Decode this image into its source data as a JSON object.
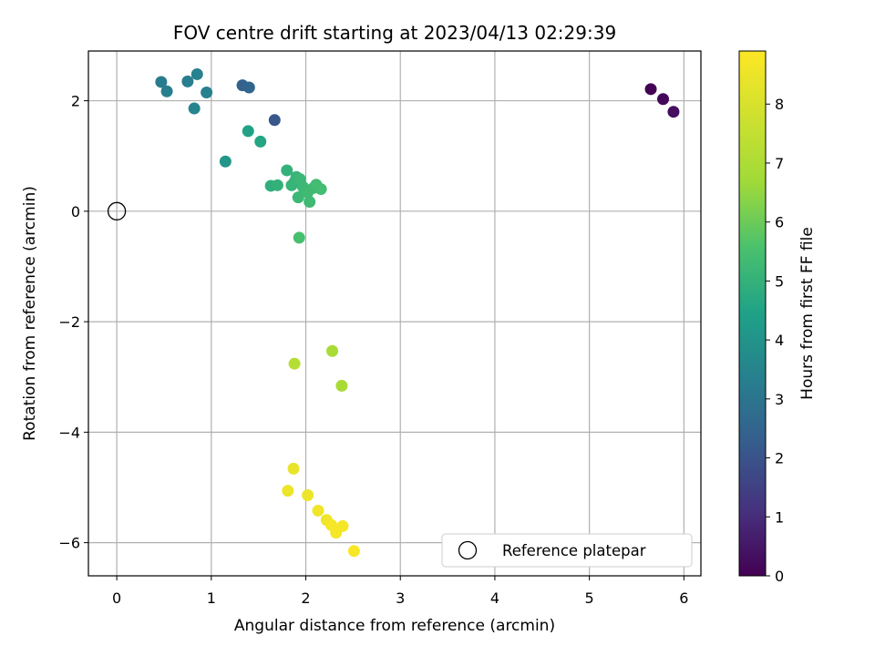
{
  "chart_data": {
    "type": "scatter",
    "title": "FOV centre drift starting at 2023/04/13 02:29:39",
    "xlabel": "Angular distance from reference (arcmin)",
    "ylabel": "Rotation from reference (arcmin)",
    "xlim": [
      -0.3,
      6.18
    ],
    "ylim": [
      -6.6,
      2.9
    ],
    "xticks": [
      0,
      1,
      2,
      3,
      4,
      5,
      6
    ],
    "yticks": [
      -6,
      -4,
      -2,
      0,
      2
    ],
    "ytick_labels": [
      "−6",
      "−4",
      "−2",
      "0",
      "2"
    ],
    "grid": true,
    "colormap": "viridis",
    "colorbar": {
      "label": "Hours from first FF file",
      "range": [
        0,
        8.9
      ],
      "ticks": [
        0,
        1,
        2,
        3,
        4,
        5,
        6,
        7,
        8
      ]
    },
    "legend": {
      "position": "lower-right",
      "entries": [
        {
          "label": "Reference platepar",
          "marker": "open-circle"
        }
      ]
    },
    "reference_point": {
      "x": 0,
      "y": 0
    },
    "points": [
      {
        "x": 5.65,
        "y": 2.21,
        "c": 0.0
      },
      {
        "x": 5.78,
        "y": 2.03,
        "c": 0.15
      },
      {
        "x": 5.89,
        "y": 1.8,
        "c": 0.3
      },
      {
        "x": 1.67,
        "y": 1.65,
        "c": 2.1
      },
      {
        "x": 1.33,
        "y": 2.28,
        "c": 2.4
      },
      {
        "x": 1.4,
        "y": 2.24,
        "c": 2.5
      },
      {
        "x": 0.47,
        "y": 2.34,
        "c": 3.2
      },
      {
        "x": 0.53,
        "y": 2.17,
        "c": 3.3
      },
      {
        "x": 0.75,
        "y": 2.35,
        "c": 3.3
      },
      {
        "x": 0.85,
        "y": 2.48,
        "c": 3.4
      },
      {
        "x": 0.95,
        "y": 2.15,
        "c": 3.4
      },
      {
        "x": 0.82,
        "y": 1.86,
        "c": 3.5
      },
      {
        "x": 1.15,
        "y": 0.9,
        "c": 4.1
      },
      {
        "x": 1.39,
        "y": 1.45,
        "c": 4.5
      },
      {
        "x": 1.52,
        "y": 1.26,
        "c": 4.6
      },
      {
        "x": 1.63,
        "y": 0.46,
        "c": 4.9
      },
      {
        "x": 1.7,
        "y": 0.47,
        "c": 5.0
      },
      {
        "x": 1.8,
        "y": 0.74,
        "c": 5.0
      },
      {
        "x": 1.85,
        "y": 0.47,
        "c": 5.1
      },
      {
        "x": 1.88,
        "y": 0.53,
        "c": 5.1
      },
      {
        "x": 1.9,
        "y": 0.62,
        "c": 5.1
      },
      {
        "x": 1.94,
        "y": 0.58,
        "c": 5.2
      },
      {
        "x": 1.97,
        "y": 0.44,
        "c": 5.2
      },
      {
        "x": 1.92,
        "y": 0.25,
        "c": 5.2
      },
      {
        "x": 2.02,
        "y": 0.34,
        "c": 5.3
      },
      {
        "x": 2.04,
        "y": 0.17,
        "c": 5.3
      },
      {
        "x": 2.08,
        "y": 0.42,
        "c": 5.3
      },
      {
        "x": 2.11,
        "y": 0.48,
        "c": 5.4
      },
      {
        "x": 2.16,
        "y": 0.4,
        "c": 5.4
      },
      {
        "x": 1.93,
        "y": -0.48,
        "c": 5.5
      },
      {
        "x": 2.28,
        "y": -2.53,
        "c": 6.9
      },
      {
        "x": 1.88,
        "y": -2.76,
        "c": 7.2
      },
      {
        "x": 2.38,
        "y": -3.16,
        "c": 6.9
      },
      {
        "x": 1.87,
        "y": -4.66,
        "c": 8.4
      },
      {
        "x": 1.81,
        "y": -5.06,
        "c": 8.5
      },
      {
        "x": 2.02,
        "y": -5.14,
        "c": 8.5
      },
      {
        "x": 2.13,
        "y": -5.42,
        "c": 8.6
      },
      {
        "x": 2.22,
        "y": -5.59,
        "c": 8.6
      },
      {
        "x": 2.27,
        "y": -5.68,
        "c": 8.7
      },
      {
        "x": 2.32,
        "y": -5.82,
        "c": 8.7
      },
      {
        "x": 2.39,
        "y": -5.7,
        "c": 8.7
      },
      {
        "x": 2.51,
        "y": -6.15,
        "c": 8.8
      }
    ]
  }
}
